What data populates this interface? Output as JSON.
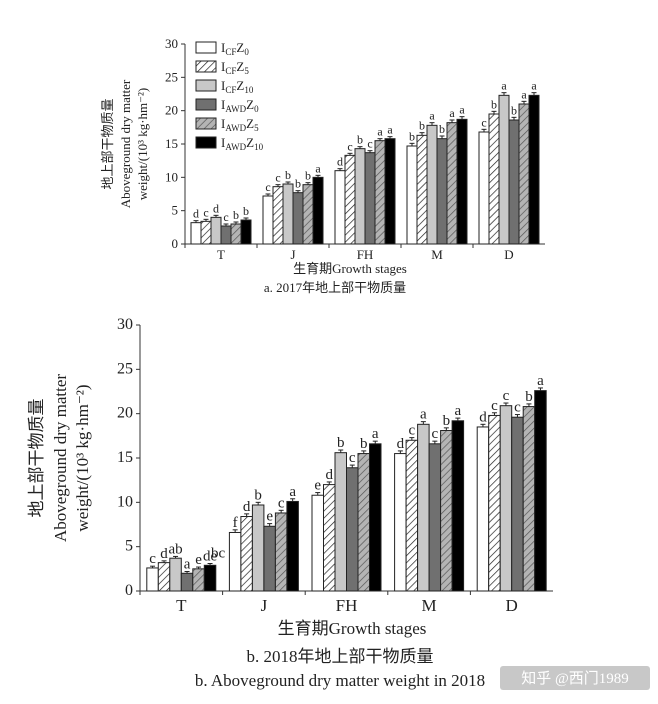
{
  "legend": {
    "entries": [
      {
        "main": "I",
        "sub1": "CF",
        "mid": "Z",
        "sub2": "0",
        "fill": "white"
      },
      {
        "main": "I",
        "sub1": "CF",
        "mid": "Z",
        "sub2": "5",
        "fill": "hatch"
      },
      {
        "main": "I",
        "sub1": "CF",
        "mid": "Z",
        "sub2": "10",
        "fill": "#c8c8c8"
      },
      {
        "main": "I",
        "sub1": "AWD",
        "mid": "Z",
        "sub2": "0",
        "fill": "#707070"
      },
      {
        "main": "I",
        "sub1": "AWD",
        "mid": "Z",
        "sub2": "5",
        "fill": "hatchgray"
      },
      {
        "main": "I",
        "sub1": "AWD",
        "mid": "Z",
        "sub2": "10",
        "fill": "#000000"
      }
    ]
  },
  "watermark": "知乎 @西门1989",
  "chart_data": [
    {
      "type": "bar",
      "caption": "a. 2017年地上部干物质量",
      "ylabel_cn": "地上部干物质量",
      "ylabel_en1": "Aboveground dry matter",
      "ylabel_en2": "weight/(10³ kg·hm⁻²)",
      "xlabel": "生育期Growth stages",
      "ylim": [
        0,
        30
      ],
      "yticks": [
        "0",
        "5",
        "10",
        "15",
        "20",
        "25",
        "30"
      ],
      "categories": [
        "T",
        "J",
        "FH",
        "M",
        "D"
      ],
      "series": [
        {
          "name": "ICFZ0",
          "values": [
            3.2,
            7.2,
            11.0,
            14.7,
            16.8
          ],
          "errors": [
            0.3,
            0.3,
            0.3,
            0.4,
            0.4
          ]
        },
        {
          "name": "ICFZ5",
          "values": [
            3.4,
            8.6,
            13.3,
            16.3,
            19.5
          ],
          "errors": [
            0.3,
            0.3,
            0.3,
            0.4,
            0.4
          ]
        },
        {
          "name": "ICFZ10",
          "values": [
            4.0,
            9.0,
            14.3,
            17.8,
            22.3
          ],
          "errors": [
            0.3,
            0.3,
            0.3,
            0.4,
            0.4
          ]
        },
        {
          "name": "IAWDZ0",
          "values": [
            2.7,
            7.7,
            13.7,
            15.8,
            18.6
          ],
          "errors": [
            0.3,
            0.3,
            0.3,
            0.4,
            0.4
          ]
        },
        {
          "name": "IAWDZ5",
          "values": [
            3.0,
            8.9,
            15.5,
            18.2,
            21.0
          ],
          "errors": [
            0.3,
            0.3,
            0.3,
            0.4,
            0.4
          ]
        },
        {
          "name": "IAWDZ10",
          "values": [
            3.6,
            10.0,
            15.8,
            18.7,
            22.3
          ],
          "errors": [
            0.3,
            0.3,
            0.3,
            0.4,
            0.4
          ]
        }
      ],
      "letters": [
        [
          "d",
          "c",
          "d",
          "c",
          "b",
          "b"
        ],
        [
          "c",
          "c",
          "b",
          "b",
          "b",
          "a"
        ],
        [
          "d",
          "c",
          "b",
          "c",
          "a",
          "a"
        ],
        [
          "b",
          "b",
          "a",
          "b",
          "a",
          "a"
        ],
        [
          "c",
          "b",
          "a",
          "b",
          "a",
          "a"
        ]
      ]
    },
    {
      "type": "bar",
      "caption": "b. 2018年地上部干物质量",
      "caption_en": "b. Aboveground dry matter weight in 2018",
      "ylabel_cn": "地上部干物质量",
      "ylabel_en1": "Aboveground dry matter",
      "ylabel_en2": "weight/(10³ kg·hm⁻²)",
      "xlabel": "生育期Growth stages",
      "ylim": [
        0,
        30
      ],
      "yticks": [
        "0",
        "5",
        "10",
        "15",
        "20",
        "25",
        "30"
      ],
      "categories": [
        "T",
        "J",
        "FH",
        "M",
        "D"
      ],
      "series": [
        {
          "name": "ICFZ0",
          "values": [
            2.6,
            6.6,
            10.8,
            15.5,
            18.5
          ],
          "errors": [
            0.2,
            0.3,
            0.3,
            0.3,
            0.3
          ]
        },
        {
          "name": "ICFZ5",
          "values": [
            3.2,
            8.4,
            12.0,
            17.0,
            19.8
          ],
          "errors": [
            0.2,
            0.3,
            0.3,
            0.3,
            0.3
          ]
        },
        {
          "name": "ICFZ10",
          "values": [
            3.7,
            9.7,
            15.6,
            18.8,
            20.9
          ],
          "errors": [
            0.2,
            0.3,
            0.3,
            0.3,
            0.3
          ]
        },
        {
          "name": "IAWDZ0",
          "values": [
            2.0,
            7.3,
            13.9,
            16.6,
            19.6
          ],
          "errors": [
            0.2,
            0.3,
            0.3,
            0.3,
            0.3
          ]
        },
        {
          "name": "IAWDZ5",
          "values": [
            2.5,
            8.8,
            15.5,
            18.1,
            20.8
          ],
          "errors": [
            0.2,
            0.3,
            0.3,
            0.3,
            0.3
          ]
        },
        {
          "name": "IAWDZ10",
          "values": [
            2.9,
            10.1,
            16.6,
            19.2,
            22.6
          ],
          "errors": [
            0.2,
            0.3,
            0.3,
            0.3,
            0.3
          ]
        }
      ],
      "letters": [
        [
          "c",
          "d",
          "ab",
          "a",
          "e",
          "de"
        ],
        [
          "f",
          "d",
          "b",
          "e",
          "c",
          "a"
        ],
        [
          "e",
          "d",
          "b",
          "c",
          "b",
          "a"
        ],
        [
          "d",
          "c",
          "a",
          "c",
          "b",
          "a"
        ],
        [
          "d",
          "c",
          "c",
          "c",
          "b",
          "a"
        ]
      ],
      "extra_letter": "bc"
    }
  ]
}
